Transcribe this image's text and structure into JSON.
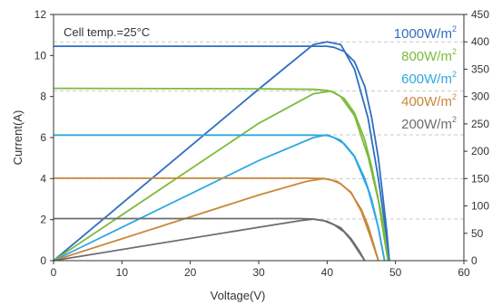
{
  "chart_data": {
    "type": "line",
    "annotation": "Cell temp.=25°C",
    "xlabel": "Voltage(V)",
    "ylabel": "Current(A)",
    "xlim": [
      0,
      60
    ],
    "ylim": [
      0,
      12
    ],
    "y2lim": [
      0,
      450
    ],
    "xticks": [
      "0",
      "10",
      "20",
      "30",
      "40",
      "50",
      "60"
    ],
    "yticks": [
      "0",
      "2",
      "4",
      "6",
      "8",
      "10",
      "12"
    ],
    "y2ticks": [
      "0",
      "50",
      "100",
      "150",
      "200",
      "250",
      "300",
      "350",
      "400",
      "450"
    ],
    "grid": "dashed horizontal lines at the maximum-power level of each curve",
    "legend_position": "top-right",
    "series": [
      {
        "name": "1000W/m2",
        "label_base": "1000W/m",
        "label_sup": "2",
        "color": "#2f6fbf",
        "iv_curve": [
          [
            0,
            10.45
          ],
          [
            30,
            10.45
          ],
          [
            38,
            10.45
          ],
          [
            40,
            10.45
          ],
          [
            41,
            10.4
          ],
          [
            42.5,
            10.2
          ],
          [
            44,
            9.7
          ],
          [
            45.5,
            8.5
          ],
          [
            46.5,
            7.0
          ],
          [
            47.5,
            5.0
          ],
          [
            48.2,
            3.0
          ],
          [
            48.7,
            1.5
          ],
          [
            49.1,
            0
          ]
        ],
        "power_curve": [
          [
            0,
            0
          ],
          [
            30,
            313.5
          ],
          [
            38,
            395
          ],
          [
            40,
            400
          ],
          [
            42,
            395
          ],
          [
            44,
            350
          ],
          [
            46,
            260
          ],
          [
            47.5,
            150
          ],
          [
            48.5,
            60
          ],
          [
            49.1,
            0
          ]
        ]
      },
      {
        "name": "800W/m2",
        "label_base": "800W/m",
        "label_sup": "2",
        "color": "#7dbb3c",
        "iv_curve": [
          [
            0,
            8.4
          ],
          [
            30,
            8.38
          ],
          [
            38,
            8.35
          ],
          [
            40,
            8.3
          ],
          [
            41,
            8.2
          ],
          [
            42.5,
            7.9
          ],
          [
            44,
            7.2
          ],
          [
            45.5,
            5.9
          ],
          [
            46.5,
            4.6
          ],
          [
            47.5,
            3.0
          ],
          [
            48.2,
            1.8
          ],
          [
            48.9,
            0
          ]
        ],
        "power_curve": [
          [
            0,
            0
          ],
          [
            30,
            251
          ],
          [
            38,
            305
          ],
          [
            40.5,
            310
          ],
          [
            42,
            300
          ],
          [
            44,
            265
          ],
          [
            46,
            190
          ],
          [
            47.5,
            110
          ],
          [
            48.3,
            45
          ],
          [
            48.9,
            0
          ]
        ]
      },
      {
        "name": "600W/m2",
        "label_base": "600W/m",
        "label_sup": "2",
        "color": "#2fa8e0",
        "iv_curve": [
          [
            0,
            6.12
          ],
          [
            30,
            6.12
          ],
          [
            38,
            6.12
          ],
          [
            40,
            6.1
          ],
          [
            41,
            6.0
          ],
          [
            42.5,
            5.7
          ],
          [
            44,
            5.1
          ],
          [
            45.5,
            4.0
          ],
          [
            46.5,
            3.0
          ],
          [
            47.5,
            1.6
          ],
          [
            48.4,
            0
          ]
        ],
        "power_curve": [
          [
            0,
            0
          ],
          [
            30,
            183
          ],
          [
            38,
            225
          ],
          [
            40,
            230
          ],
          [
            42,
            220
          ],
          [
            44,
            190
          ],
          [
            46,
            130
          ],
          [
            47.5,
            60
          ],
          [
            48.4,
            0
          ]
        ]
      },
      {
        "name": "400W/m2",
        "label_base": "400W/m",
        "label_sup": "2",
        "color": "#c8883a",
        "iv_curve": [
          [
            0,
            4.02
          ],
          [
            30,
            4.02
          ],
          [
            37,
            4.02
          ],
          [
            39.5,
            4.0
          ],
          [
            40.5,
            3.95
          ],
          [
            42,
            3.75
          ],
          [
            43.5,
            3.3
          ],
          [
            45,
            2.5
          ],
          [
            46,
            1.7
          ],
          [
            46.8,
            0.8
          ],
          [
            47.5,
            0
          ]
        ],
        "power_curve": [
          [
            0,
            0
          ],
          [
            30,
            120
          ],
          [
            37,
            145
          ],
          [
            39.5,
            150
          ],
          [
            41.5,
            145
          ],
          [
            43.5,
            125
          ],
          [
            45,
            90
          ],
          [
            46.3,
            45
          ],
          [
            47.5,
            0
          ]
        ]
      },
      {
        "name": "200W/m2",
        "label_base": "200W/m",
        "label_sup": "2",
        "color": "#6d6d6d",
        "iv_curve": [
          [
            0,
            2.05
          ],
          [
            30,
            2.05
          ],
          [
            36,
            2.05
          ],
          [
            38,
            2.03
          ],
          [
            39.5,
            1.95
          ],
          [
            41,
            1.75
          ],
          [
            42.5,
            1.4
          ],
          [
            43.5,
            1.0
          ],
          [
            44.5,
            0.5
          ],
          [
            45.5,
            0
          ]
        ],
        "power_curve": [
          [
            0,
            0
          ],
          [
            30,
            61
          ],
          [
            36,
            73
          ],
          [
            38,
            76
          ],
          [
            40,
            72
          ],
          [
            42,
            60
          ],
          [
            43.5,
            40
          ],
          [
            44.7,
            18
          ],
          [
            45.5,
            0
          ]
        ]
      }
    ]
  }
}
